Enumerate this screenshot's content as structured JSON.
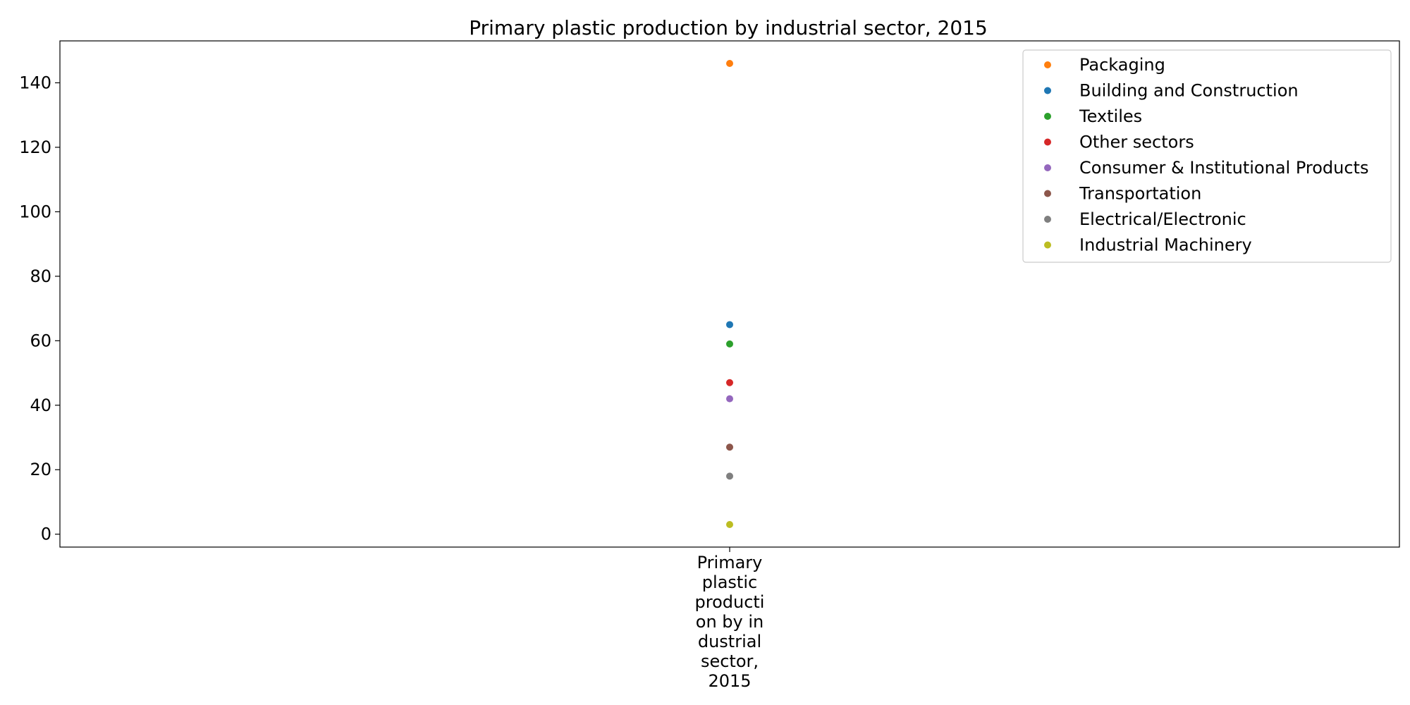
{
  "chart_data": {
    "type": "scatter",
    "title": "Primary plastic production by industrial sector, 2015",
    "xlabel": "",
    "ylabel": "",
    "categories": [
      "Primary plastic production by industrial sector, 2015"
    ],
    "category_label_lines": [
      "Primary",
      "plastic",
      "producti",
      "on by in",
      "dustrial",
      "sector,",
      "2015"
    ],
    "ylim": [
      -4,
      153
    ],
    "yticks": [
      0,
      20,
      40,
      60,
      80,
      100,
      120,
      140
    ],
    "grid": false,
    "legend_position": "top-right",
    "series": [
      {
        "name": "Packaging",
        "values": [
          146
        ],
        "color": "#ff7f0e"
      },
      {
        "name": "Building and Construction",
        "values": [
          65
        ],
        "color": "#1f77b4"
      },
      {
        "name": "Textiles",
        "values": [
          59
        ],
        "color": "#2ca02c"
      },
      {
        "name": "Other sectors",
        "values": [
          47
        ],
        "color": "#d62728"
      },
      {
        "name": "Consumer & Institutional Products",
        "values": [
          42
        ],
        "color": "#9467bd"
      },
      {
        "name": "Transportation",
        "values": [
          27
        ],
        "color": "#8c564b"
      },
      {
        "name": "Electrical/Electronic",
        "values": [
          18
        ],
        "color": "#7f7f7f"
      },
      {
        "name": "Industrial Machinery",
        "values": [
          3
        ],
        "color": "#bcbd22"
      }
    ]
  }
}
